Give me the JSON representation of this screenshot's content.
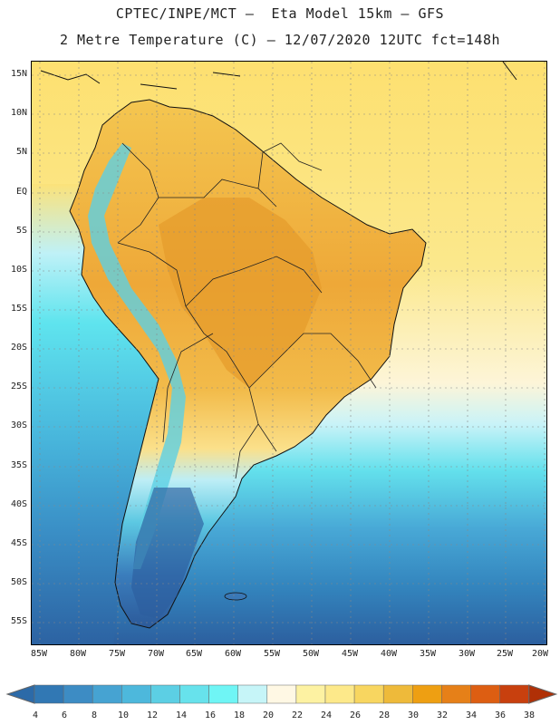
{
  "header": {
    "title_line1": "CPTEC/INPE/MCT –  Eta Model 15km – GFS",
    "title_line2": "2 Metre Temperature (C) – 12/07/2020 12UTC fct=148h"
  },
  "map": {
    "lat_labels": [
      "15N",
      "10N",
      "5N",
      "EQ",
      "5S",
      "10S",
      "15S",
      "20S",
      "25S",
      "30S",
      "35S",
      "40S",
      "45S",
      "50S",
      "55S"
    ],
    "lon_labels": [
      "85W",
      "80W",
      "75W",
      "70W",
      "65W",
      "60W",
      "55W",
      "50W",
      "45W",
      "40W",
      "35W",
      "30W",
      "25W",
      "20W"
    ],
    "ocean_color": "#fbde6a"
  },
  "colorbar": {
    "labels": [
      "4",
      "6",
      "8",
      "10",
      "12",
      "14",
      "16",
      "18",
      "20",
      "22",
      "24",
      "26",
      "28",
      "30",
      "32",
      "34",
      "36",
      "38"
    ],
    "colors": [
      "#2c6aa8",
      "#3178b4",
      "#3d8cc4",
      "#46a3d2",
      "#4db8dc",
      "#5ccfe4",
      "#67e2ec",
      "#6ff5f5",
      "#c6f5f8",
      "#fff8e4",
      "#fdf2a2",
      "#fde98a",
      "#f8d660",
      "#eeba3a",
      "#ee9f12",
      "#e68018",
      "#dd5e12",
      "#c8400e",
      "#b03006"
    ]
  }
}
